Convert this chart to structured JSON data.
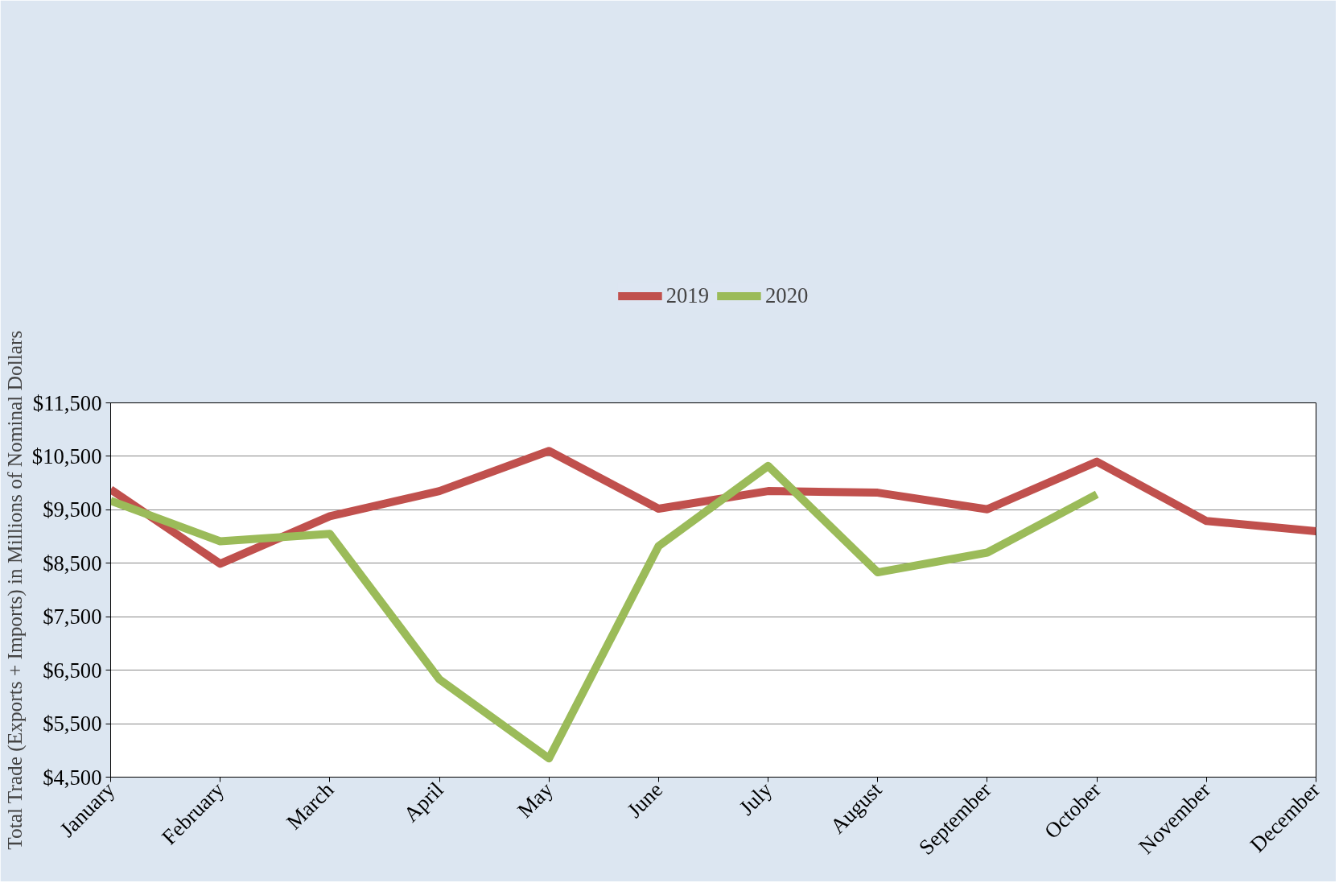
{
  "chart_data": {
    "type": "line",
    "ylabel": "Total Trade (Exports + Imports) in Millions of Nominal Dollars",
    "categories": [
      "January",
      "February",
      "March",
      "April",
      "May",
      "June",
      "July",
      "August",
      "September",
      "October",
      "November",
      "December"
    ],
    "series": [
      {
        "name": "2019",
        "color": "#c0504d",
        "values": [
          9880,
          8490,
          9380,
          9850,
          10600,
          9520,
          9850,
          9820,
          9510,
          10400,
          9290,
          9100
        ]
      },
      {
        "name": "2020",
        "color": "#9bbb59",
        "values": [
          9670,
          8910,
          9050,
          6330,
          4850,
          8820,
          10320,
          8330,
          8700,
          9790,
          null,
          null
        ]
      }
    ],
    "ylim": [
      4500,
      11500
    ],
    "yticks": [
      {
        "value": 4500,
        "label": "$4,500"
      },
      {
        "value": 5500,
        "label": "$5,500"
      },
      {
        "value": 6500,
        "label": "$6,500"
      },
      {
        "value": 7500,
        "label": "$7,500"
      },
      {
        "value": 8500,
        "label": "$8,500"
      },
      {
        "value": 9500,
        "label": "$9,500"
      },
      {
        "value": 10500,
        "label": "$10,500"
      },
      {
        "value": 11500,
        "label": "$11,500"
      }
    ],
    "grid": "y",
    "legend": "top",
    "marker": "none",
    "line_style": "solid"
  }
}
